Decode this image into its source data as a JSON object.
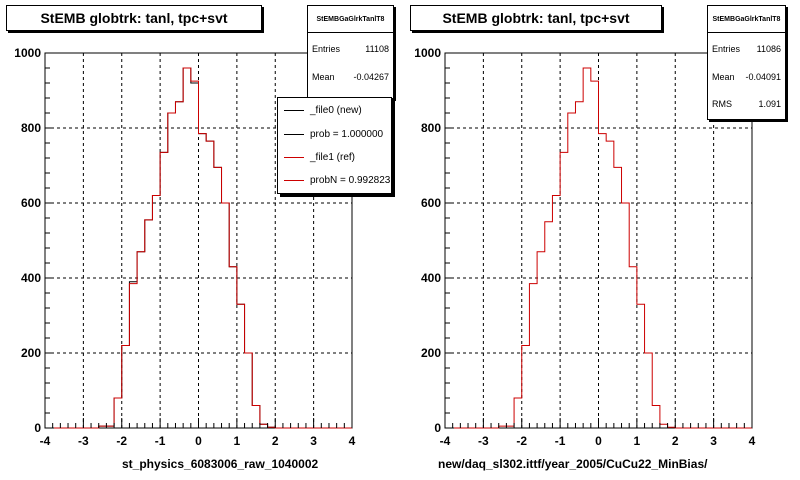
{
  "chart_data": [
    {
      "type": "histogram",
      "title": "StEMB globtrk: tanl, tpc+svt",
      "xlabel": "st_physics_6083006_raw_1040002",
      "ylabel": "",
      "xlim": [
        -4,
        4
      ],
      "ylim": [
        0,
        1000
      ],
      "x_ticks": [
        "-4",
        "-3",
        "-2",
        "-1",
        "0",
        "1",
        "2",
        "3",
        "4"
      ],
      "y_ticks": [
        "0",
        "200",
        "400",
        "600",
        "800",
        "1000"
      ],
      "grid": true,
      "bin_edges": [
        -4.0,
        -3.8,
        -3.6,
        -3.4,
        -3.2,
        -3.0,
        -2.8,
        -2.6,
        -2.4,
        -2.2,
        -2.0,
        -1.8,
        -1.6,
        -1.4,
        -1.2,
        -1.0,
        -0.8,
        -0.6,
        -0.4,
        -0.2,
        0.0,
        0.2,
        0.4,
        0.6,
        0.8,
        1.0,
        1.2,
        1.4,
        1.6,
        1.8,
        2.0,
        2.2,
        2.4,
        2.6,
        2.8,
        3.0,
        3.2,
        3.4,
        3.6,
        3.8,
        4.0
      ],
      "series": [
        {
          "name": "_file0 (new)",
          "color": "#000000",
          "values": [
            0,
            0,
            0,
            0,
            0,
            0,
            0,
            5,
            5,
            80,
            220,
            390,
            470,
            555,
            620,
            735,
            840,
            870,
            960,
            920,
            785,
            765,
            695,
            600,
            430,
            330,
            200,
            60,
            10,
            2,
            0,
            0,
            0,
            0,
            0,
            0,
            0,
            0,
            0,
            0
          ]
        },
        {
          "name": "_file1 (ref)",
          "color": "#cc0000",
          "values": [
            0,
            0,
            0,
            0,
            0,
            0,
            0,
            5,
            5,
            80,
            220,
            385,
            470,
            555,
            620,
            735,
            840,
            870,
            960,
            925,
            785,
            765,
            695,
            600,
            430,
            330,
            200,
            60,
            10,
            2,
            0,
            0,
            0,
            0,
            0,
            0,
            0,
            0,
            0,
            0
          ]
        }
      ],
      "legend": [
        {
          "label": "_file0 (new)",
          "color": "#000000"
        },
        {
          "label": "prob = 1.000000",
          "color": "#000000"
        },
        {
          "label": "_file1 (ref)",
          "color": "#cc0000"
        },
        {
          "label": "probN = 0.992823",
          "color": "#cc0000"
        }
      ],
      "legend_placement": "top-right",
      "stats": {
        "name": "StEMBGaGlrkTanlT8",
        "rows": [
          {
            "label": "Entries",
            "value": "11108"
          },
          {
            "label": "Mean",
            "value": "-0.04267"
          }
        ]
      }
    },
    {
      "type": "histogram",
      "title": "StEMB globtrk: tanl, tpc+svt",
      "xlabel": "new/daq_sl302.ittf/year_2005/CuCu22_MinBias/",
      "ylabel": "",
      "xlim": [
        -4,
        4
      ],
      "ylim": [
        0,
        1000
      ],
      "x_ticks": [
        "-4",
        "-3",
        "-2",
        "-1",
        "0",
        "1",
        "2",
        "3",
        "4"
      ],
      "y_ticks": [
        "0",
        "200",
        "400",
        "600",
        "800",
        "1000"
      ],
      "grid": true,
      "bin_edges": [
        -4.0,
        -3.8,
        -3.6,
        -3.4,
        -3.2,
        -3.0,
        -2.8,
        -2.6,
        -2.4,
        -2.2,
        -2.0,
        -1.8,
        -1.6,
        -1.4,
        -1.2,
        -1.0,
        -0.8,
        -0.6,
        -0.4,
        -0.2,
        0.0,
        0.2,
        0.4,
        0.6,
        0.8,
        1.0,
        1.2,
        1.4,
        1.6,
        1.8,
        2.0,
        2.2,
        2.4,
        2.6,
        2.8,
        3.0,
        3.2,
        3.4,
        3.6,
        3.8,
        4.0
      ],
      "series": [
        {
          "name": "_file1 (ref)",
          "color": "#cc0000",
          "values": [
            0,
            0,
            0,
            0,
            0,
            0,
            0,
            5,
            5,
            80,
            220,
            385,
            470,
            550,
            620,
            735,
            840,
            870,
            960,
            925,
            785,
            765,
            695,
            600,
            430,
            330,
            200,
            60,
            10,
            2,
            0,
            0,
            0,
            0,
            0,
            0,
            0,
            0,
            0,
            0
          ]
        }
      ],
      "stats": {
        "name": "StEMBGaGlrkTanlT8",
        "rows": [
          {
            "label": "Entries",
            "value": "11086"
          },
          {
            "label": "Mean",
            "value": "-0.04091"
          },
          {
            "label": "RMS",
            "value": "1.091"
          }
        ]
      }
    }
  ]
}
